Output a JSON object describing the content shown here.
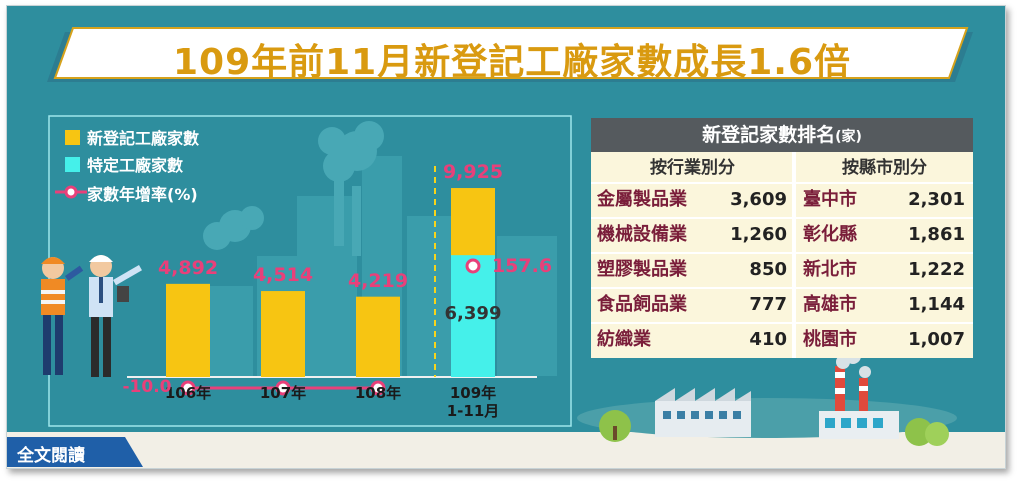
{
  "title": "109年前11月新登記工廠家數成長1.6倍",
  "colors": {
    "background": "#2e8e9e",
    "new_factories": "#f7c512",
    "specific_factories": "#45f0ea",
    "growth_line": "#e8407a",
    "value_text": "#e8407a",
    "title_text": "#d99a10"
  },
  "chart_data": {
    "type": "bar",
    "categories": [
      "106年",
      "107年",
      "108年",
      "109年\n1-11月"
    ],
    "series": [
      {
        "name": "新登記工廠家數",
        "values": [
          4892,
          4514,
          4219,
          9925
        ]
      },
      {
        "name": "特定工廠家數",
        "values": [
          null,
          null,
          null,
          6399
        ]
      },
      {
        "name": "家數年增率(%)",
        "values": [
          -10.0,
          null,
          null,
          157.6
        ]
      }
    ],
    "value_labels": [
      "4,892",
      "4,514",
      "4,219",
      "9,925"
    ],
    "specific_label": "6,399",
    "growth_labels": [
      "-10.0",
      "157.6"
    ],
    "legend": [
      "新登記工廠家數",
      "特定工廠家數",
      "家數年增率(%)"
    ],
    "legend_position": "top-left"
  },
  "ranking": {
    "title": "新登記家數排名",
    "unit": "(家)",
    "by_industry_header": "按行業別分",
    "by_county_header": "按縣市別分",
    "industries": [
      {
        "name": "金屬製品業",
        "value": "3,609"
      },
      {
        "name": "機械設備業",
        "value": "1,260"
      },
      {
        "name": "塑膠製品業",
        "value": "850"
      },
      {
        "name": "食品飼品業",
        "value": "777"
      },
      {
        "name": "紡織業",
        "value": "410"
      }
    ],
    "counties": [
      {
        "name": "臺中市",
        "value": "2,301"
      },
      {
        "name": "彰化縣",
        "value": "1,861"
      },
      {
        "name": "新北市",
        "value": "1,222"
      },
      {
        "name": "高雄市",
        "value": "1,144"
      },
      {
        "name": "桃園市",
        "value": "1,007"
      }
    ]
  },
  "footer": {
    "read_more": "全文閱讀"
  }
}
